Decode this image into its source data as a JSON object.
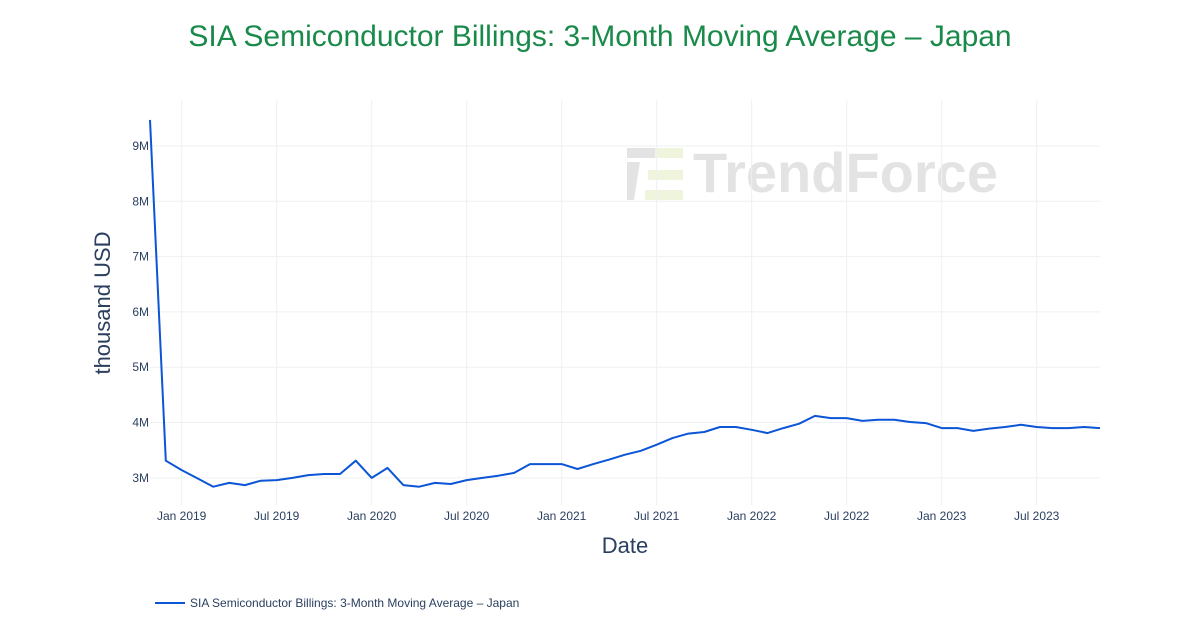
{
  "chart_data": {
    "type": "line",
    "title": "SIA Semiconductor Billings: 3-Month Moving Average – Japan",
    "xlabel": "Date",
    "ylabel": "thousand USD",
    "x_tick_labels": [
      "Jan 2019",
      "Jul 2019",
      "Jan 2020",
      "Jul 2020",
      "Jan 2021",
      "Jul 2021",
      "Jan 2022",
      "Jul 2022",
      "Jan 2023",
      "Jul 2023"
    ],
    "x_ticks": [
      "2019-01",
      "2019-07",
      "2020-01",
      "2020-07",
      "2021-01",
      "2021-07",
      "2022-01",
      "2022-07",
      "2023-01",
      "2023-07"
    ],
    "y_tick_labels": [
      "3M",
      "4M",
      "5M",
      "6M",
      "7M",
      "8M",
      "9M"
    ],
    "y_ticks": [
      3000000,
      4000000,
      5000000,
      6000000,
      7000000,
      8000000,
      9000000
    ],
    "xlim": [
      "2018-11",
      "2023-11"
    ],
    "ylim": [
      2510000,
      9830000
    ],
    "grid": true,
    "legend_position": "bottom-left",
    "line_color": "#0b55d6",
    "series": [
      {
        "name": "SIA Semiconductor Billings: 3-Month Moving Average – Japan",
        "x": [
          "2018-11",
          "2018-12",
          "2019-01",
          "2019-02",
          "2019-03",
          "2019-04",
          "2019-05",
          "2019-06",
          "2019-07",
          "2019-08",
          "2019-09",
          "2019-10",
          "2019-11",
          "2019-12",
          "2020-01",
          "2020-02",
          "2020-03",
          "2020-04",
          "2020-05",
          "2020-06",
          "2020-07",
          "2020-08",
          "2020-09",
          "2020-10",
          "2020-11",
          "2020-12",
          "2021-01",
          "2021-02",
          "2021-03",
          "2021-04",
          "2021-05",
          "2021-06",
          "2021-07",
          "2021-08",
          "2021-09",
          "2021-10",
          "2021-11",
          "2021-12",
          "2022-01",
          "2022-02",
          "2022-03",
          "2022-04",
          "2022-05",
          "2022-06",
          "2022-07",
          "2022-08",
          "2022-09",
          "2022-10",
          "2022-11",
          "2022-12",
          "2023-01",
          "2023-02",
          "2023-03",
          "2023-04",
          "2023-05",
          "2023-06",
          "2023-07",
          "2023-08",
          "2023-09",
          "2023-10",
          "2023-11"
        ],
        "values": [
          9470000,
          3310000,
          3140000,
          2990000,
          2840000,
          2910000,
          2870000,
          2950000,
          2960000,
          3000000,
          3050000,
          3070000,
          3070000,
          3310000,
          3000000,
          3180000,
          2870000,
          2840000,
          2910000,
          2890000,
          2960000,
          3000000,
          3040000,
          3090000,
          3250000,
          3250000,
          3250000,
          3160000,
          3250000,
          3330000,
          3420000,
          3490000,
          3600000,
          3720000,
          3800000,
          3830000,
          3920000,
          3920000,
          3870000,
          3810000,
          3900000,
          3980000,
          4120000,
          4080000,
          4080000,
          4030000,
          4050000,
          4050000,
          4010000,
          3990000,
          3900000,
          3900000,
          3850000,
          3890000,
          3920000,
          3960000,
          3920000,
          3900000,
          3900000,
          3920000,
          3900000
        ]
      }
    ]
  },
  "watermark": "TrendForce"
}
